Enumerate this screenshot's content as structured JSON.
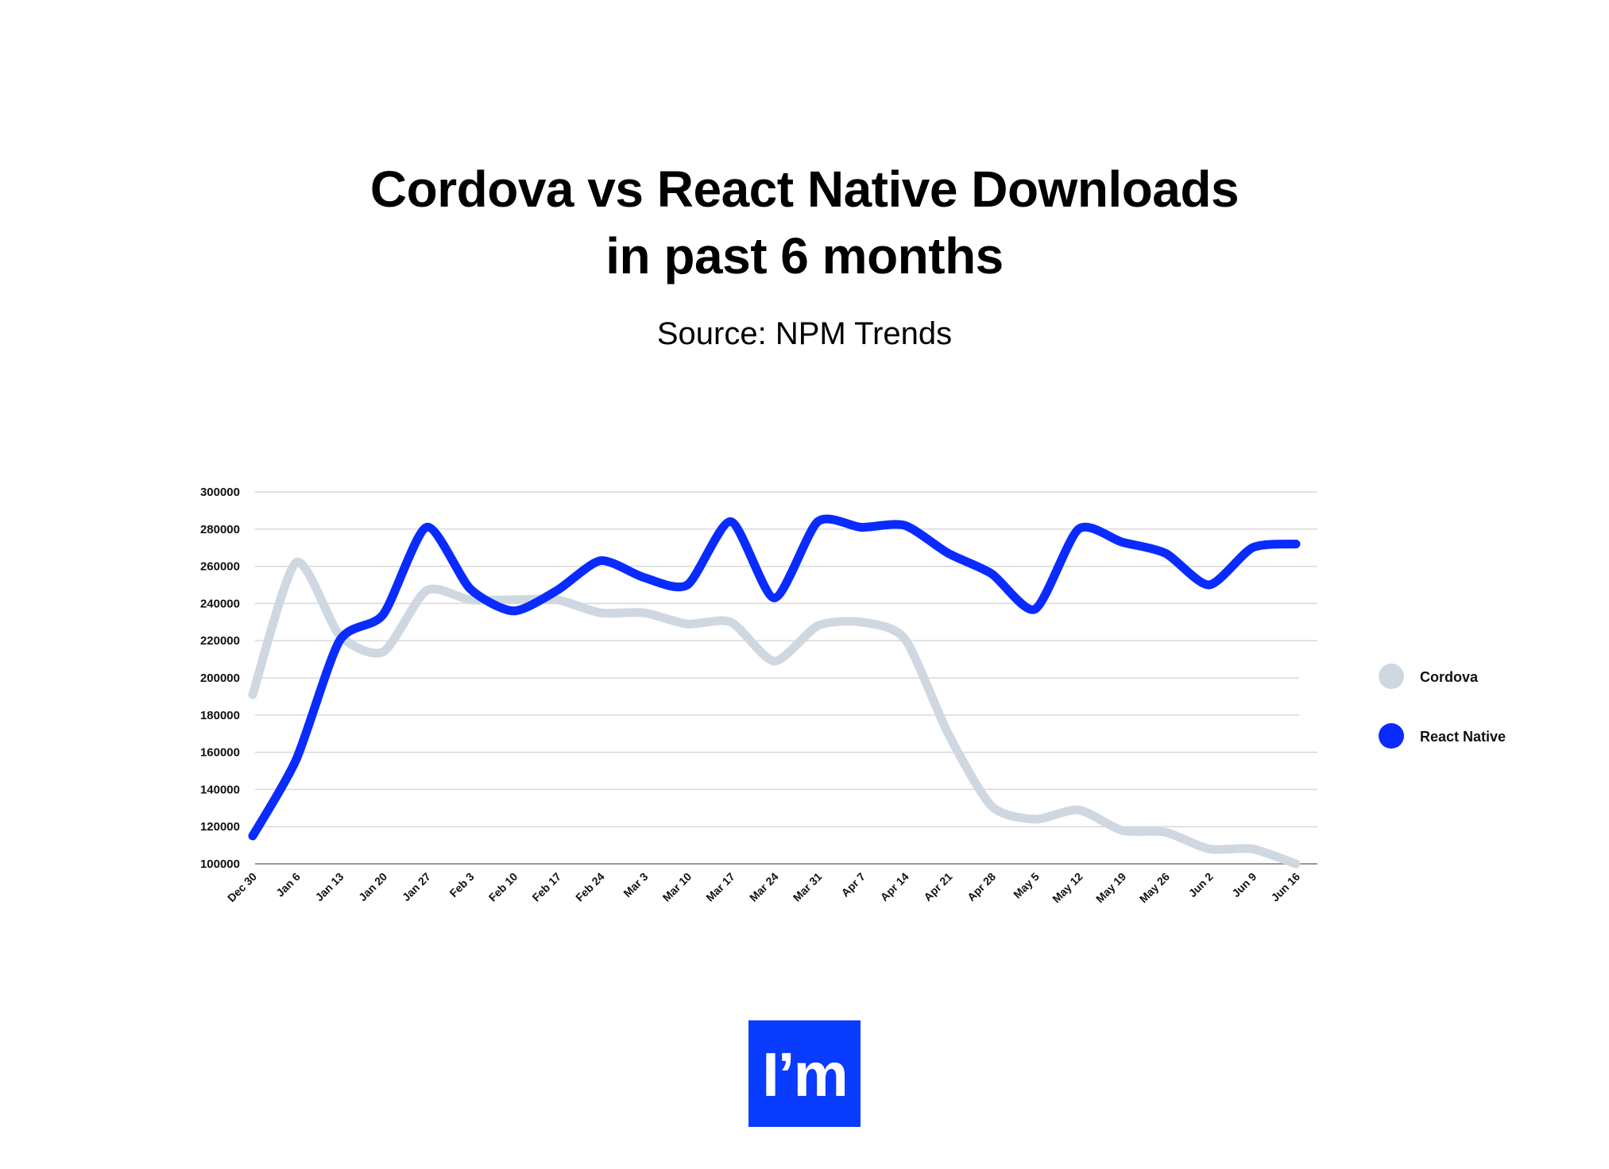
{
  "header": {
    "title_line1": "Cordova vs React Native Downloads",
    "title_line2": "in past 6 months",
    "subtitle": "Source: NPM Trends"
  },
  "logo": {
    "text": "I’m",
    "color": "#0a3cff"
  },
  "colors": {
    "cordova": "#cfd8e1",
    "react_native": "#0a2bff",
    "grid": "#d9d9d9",
    "axis": "#9a9a9a"
  },
  "chart_data": {
    "type": "line",
    "title": "Cordova vs React Native Downloads in past 6 months",
    "subtitle": "Source: NPM Trends",
    "xlabel": "",
    "ylabel": "",
    "ylim": [
      100000,
      300000
    ],
    "yticks": [
      300000,
      280000,
      260000,
      240000,
      220000,
      200000,
      180000,
      160000,
      140000,
      120000,
      100000
    ],
    "grid": true,
    "legend_position": "right",
    "categories": [
      "Dec 30",
      "Jan 6",
      "Jan 13",
      "Jan 20",
      "Jan 27",
      "Feb 3",
      "Feb 10",
      "Feb 17",
      "Feb 24",
      "Mar 3",
      "Mar 10",
      "Mar 17",
      "Mar 24",
      "Mar 31",
      "Apr 7",
      "Apr 14",
      "Apr 21",
      "Apr 28",
      "May 5",
      "May 12",
      "May 19",
      "May 26",
      "Jun 2",
      "Jun 9",
      "Jun 16"
    ],
    "series": [
      {
        "name": "Cordova",
        "color": "#cfd8e1",
        "values": [
          191000,
          262000,
          223000,
          214000,
          247000,
          242000,
          242000,
          242000,
          235000,
          235000,
          229000,
          230000,
          209000,
          228000,
          230000,
          221000,
          170000,
          131000,
          124000,
          129000,
          118000,
          117000,
          108000,
          108000,
          100000
        ]
      },
      {
        "name": "React Native",
        "color": "#0a2bff",
        "values": [
          115000,
          156000,
          220000,
          234000,
          281000,
          248000,
          236000,
          247000,
          263000,
          254000,
          250000,
          284000,
          243000,
          284000,
          281000,
          282000,
          267000,
          256000,
          237000,
          280000,
          273000,
          267000,
          250000,
          270000,
          272000
        ]
      }
    ]
  }
}
